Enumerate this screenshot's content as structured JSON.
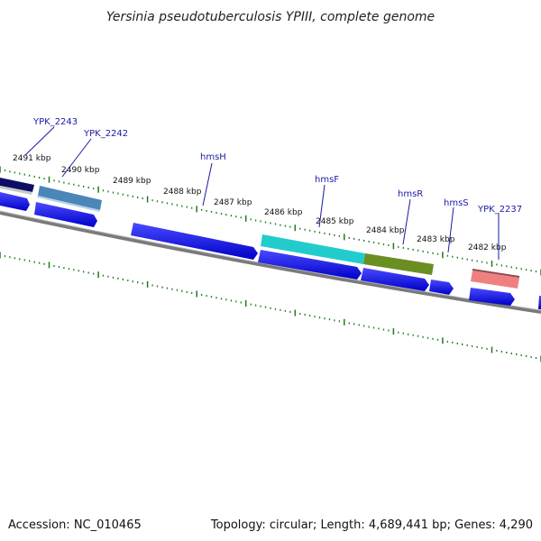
{
  "title": "Yersinia pseudotuberculosis YPIII, complete genome",
  "footer": {
    "accession": "Accession: NC_010465",
    "summary": "Topology: circular; Length: 4,689,441 bp; Genes: 4,290"
  },
  "ticks": [
    {
      "label": "2491 kbp"
    },
    {
      "label": "2490 kbp"
    },
    {
      "label": "2489 kbp"
    },
    {
      "label": "2488 kbp"
    },
    {
      "label": "2487 kbp"
    },
    {
      "label": "2486 kbp"
    },
    {
      "label": "2485 kbp"
    },
    {
      "label": "2484 kbp"
    },
    {
      "label": "2483 kbp"
    },
    {
      "label": "2482 kbp"
    }
  ],
  "gene_labels": [
    {
      "label": "YPK_2243"
    },
    {
      "label": "YPK_2242"
    },
    {
      "label": "hmsH"
    },
    {
      "label": "hmsF"
    },
    {
      "label": "hmsR"
    },
    {
      "label": "hmsS"
    },
    {
      "label": "YPK_2237"
    }
  ],
  "colors": {
    "cds": "#0a0ae6",
    "backbone": "#7a7a7a",
    "scale_ticks": "#1f7a1f",
    "gene_label": "#1a1aa8",
    "feature_ypk2243": "#0d0d66",
    "feature_ypk2242": "#4a86b8",
    "feature_hmsF": "#22cccc",
    "feature_hmsR": "#6b8e23",
    "feature_ypk2237": "#f08080"
  }
}
